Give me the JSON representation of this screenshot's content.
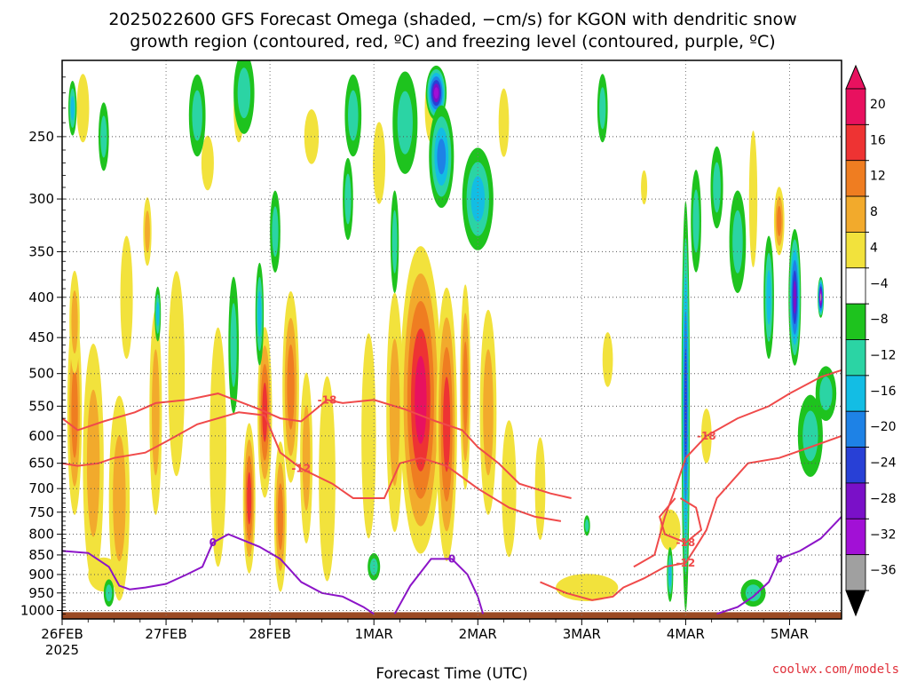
{
  "chart_data": {
    "type": "heatmap",
    "title_line1": "2025022600 GFS Forecast Omega (shaded, −cm/s) for KGON with dendritic snow",
    "title_line2": "growth region (contoured, red, ºC) and freezing level (contoured, purple, ºC)",
    "xlabel": "Forecast Time (UTC)",
    "x_axis": {
      "ticks": [
        "26FEB",
        "27FEB",
        "28FEB",
        "1MAR",
        "2MAR",
        "3MAR",
        "4MAR",
        "5MAR"
      ],
      "tick_times": [
        0,
        1,
        2,
        3,
        4,
        5,
        6,
        7
      ],
      "year_label": "2025",
      "range": [
        0,
        7.5
      ]
    },
    "y_axis": {
      "ticks": [
        250,
        300,
        350,
        400,
        450,
        500,
        550,
        600,
        650,
        700,
        750,
        800,
        850,
        900,
        950,
        1000
      ],
      "range": [
        200,
        1025
      ],
      "scale": "log-pressure, inverted"
    },
    "grid": true,
    "colorbar": {
      "labels": [
        "20",
        "16",
        "12",
        "8",
        "4",
        "−4",
        "−8",
        "−12",
        "−16",
        "−20",
        "−24",
        "−28",
        "−32",
        "−36"
      ],
      "colors": [
        "#e8115f",
        "#ee3333",
        "#ef7d21",
        "#f2aa2c",
        "#f2e23c",
        "#ffffff",
        "#1ec31e",
        "#2bd4a4",
        "#13bde4",
        "#1e82e6",
        "#2840d6",
        "#7a10c8",
        "#a210d6",
        "#a0a0a0",
        "#000000"
      ],
      "arrow_top_color": "#e8115f",
      "arrow_bottom_color": "#000000"
    },
    "contour_labels": {
      "snow_growth": [
        "-12",
        "-18"
      ],
      "freezing": [
        "0"
      ]
    },
    "ground_color": "#9b4a23",
    "snow_growth_color": "#f04a4a",
    "freezing_color": "#8c14c8",
    "omega_fields": [
      {
        "t": 0.12,
        "p": 560,
        "dt": 0.07,
        "dlogp": 0.3,
        "v": 14
      },
      {
        "t": 0.12,
        "p": 430,
        "dt": 0.05,
        "dlogp": 0.15,
        "v": 8
      },
      {
        "t": 0.3,
        "p": 650,
        "dt": 0.1,
        "dlogp": 0.35,
        "v": 8
      },
      {
        "t": 0.55,
        "p": 720,
        "dt": 0.1,
        "dlogp": 0.3,
        "v": 10
      },
      {
        "t": 0.62,
        "p": 400,
        "dt": 0.06,
        "dlogp": 0.18,
        "v": 6
      },
      {
        "t": 0.82,
        "p": 330,
        "dt": 0.04,
        "dlogp": 0.1,
        "v": 10
      },
      {
        "t": 0.9,
        "p": 560,
        "dt": 0.06,
        "dlogp": 0.3,
        "v": 8
      },
      {
        "t": 0.92,
        "p": 420,
        "dt": 0.03,
        "dlogp": 0.08,
        "v": -14
      },
      {
        "t": 1.1,
        "p": 500,
        "dt": 0.08,
        "dlogp": 0.3,
        "v": 6
      },
      {
        "t": 1.5,
        "p": 620,
        "dt": 0.08,
        "dlogp": 0.35,
        "v": 6
      },
      {
        "t": 1.8,
        "p": 720,
        "dt": 0.06,
        "dlogp": 0.22,
        "v": 18
      },
      {
        "t": 1.95,
        "p": 560,
        "dt": 0.07,
        "dlogp": 0.25,
        "v": 16
      },
      {
        "t": 2.1,
        "p": 760,
        "dt": 0.06,
        "dlogp": 0.22,
        "v": 14
      },
      {
        "t": 2.2,
        "p": 520,
        "dt": 0.08,
        "dlogp": 0.28,
        "v": 12
      },
      {
        "t": 2.35,
        "p": 640,
        "dt": 0.06,
        "dlogp": 0.25,
        "v": 10
      },
      {
        "t": 2.55,
        "p": 680,
        "dt": 0.08,
        "dlogp": 0.3,
        "v": 6
      },
      {
        "t": 2.95,
        "p": 600,
        "dt": 0.07,
        "dlogp": 0.3,
        "v": 6
      },
      {
        "t": 3.2,
        "p": 560,
        "dt": 0.08,
        "dlogp": 0.35,
        "v": 8
      },
      {
        "t": 3.45,
        "p": 540,
        "dt": 0.2,
        "dlogp": 0.45,
        "v": 22
      },
      {
        "t": 3.7,
        "p": 580,
        "dt": 0.1,
        "dlogp": 0.4,
        "v": 16
      },
      {
        "t": 3.88,
        "p": 520,
        "dt": 0.05,
        "dlogp": 0.3,
        "v": 12
      },
      {
        "t": 4.1,
        "p": 560,
        "dt": 0.08,
        "dlogp": 0.3,
        "v": 8
      },
      {
        "t": 4.3,
        "p": 700,
        "dt": 0.07,
        "dlogp": 0.2,
        "v": 6
      },
      {
        "t": 4.6,
        "p": 700,
        "dt": 0.05,
        "dlogp": 0.15,
        "v": 5
      },
      {
        "t": 5.25,
        "p": 480,
        "dt": 0.05,
        "dlogp": 0.08,
        "v": 6
      },
      {
        "t": 5.05,
        "p": 935,
        "dt": 0.3,
        "dlogp": 0.04,
        "v": 6
      },
      {
        "t": 5.85,
        "p": 790,
        "dt": 0.1,
        "dlogp": 0.06,
        "v": 6
      },
      {
        "t": 6.9,
        "p": 320,
        "dt": 0.05,
        "dlogp": 0.1,
        "v": 12
      },
      {
        "t": 6.2,
        "p": 600,
        "dt": 0.05,
        "dlogp": 0.08,
        "v": 5
      },
      {
        "t": 5.6,
        "p": 290,
        "dt": 0.03,
        "dlogp": 0.05,
        "v": 5
      },
      {
        "t": 6.65,
        "p": 300,
        "dt": 0.04,
        "dlogp": 0.2,
        "v": 5
      },
      {
        "t": 0.4,
        "p": 900,
        "dt": 0.15,
        "dlogp": 0.05,
        "v": 5
      },
      {
        "t": 1.4,
        "p": 270,
        "dt": 0.06,
        "dlogp": 0.08,
        "v": 6
      },
      {
        "t": 1.7,
        "p": 230,
        "dt": 0.05,
        "dlogp": 0.1,
        "v": 5
      },
      {
        "t": 2.4,
        "p": 250,
        "dt": 0.07,
        "dlogp": 0.08,
        "v": 5
      },
      {
        "t": 3.05,
        "p": 270,
        "dt": 0.06,
        "dlogp": 0.12,
        "v": 5
      },
      {
        "t": 3.55,
        "p": 230,
        "dt": 0.06,
        "dlogp": 0.1,
        "v": 5
      },
      {
        "t": 4.25,
        "p": 240,
        "dt": 0.05,
        "dlogp": 0.1,
        "v": 5
      },
      {
        "t": 0.2,
        "p": 230,
        "dt": 0.06,
        "dlogp": 0.1,
        "v": 5
      },
      {
        "t": 1.3,
        "p": 235,
        "dt": 0.08,
        "dlogp": 0.12,
        "v": -9
      },
      {
        "t": 1.75,
        "p": 220,
        "dt": 0.1,
        "dlogp": 0.12,
        "v": -10
      },
      {
        "t": 2.8,
        "p": 235,
        "dt": 0.08,
        "dlogp": 0.12,
        "v": -10
      },
      {
        "t": 3.3,
        "p": 240,
        "dt": 0.12,
        "dlogp": 0.15,
        "v": -9
      },
      {
        "t": 3.6,
        "p": 220,
        "dt": 0.1,
        "dlogp": 0.08,
        "v": -30
      },
      {
        "t": 3.65,
        "p": 265,
        "dt": 0.12,
        "dlogp": 0.15,
        "v": -18
      },
      {
        "t": 4.0,
        "p": 300,
        "dt": 0.15,
        "dlogp": 0.15,
        "v": -14
      },
      {
        "t": 0.1,
        "p": 230,
        "dt": 0.04,
        "dlogp": 0.08,
        "v": -14
      },
      {
        "t": 0.4,
        "p": 250,
        "dt": 0.05,
        "dlogp": 0.1,
        "v": -9
      },
      {
        "t": 1.65,
        "p": 460,
        "dt": 0.05,
        "dlogp": 0.2,
        "v": -9
      },
      {
        "t": 1.9,
        "p": 420,
        "dt": 0.04,
        "dlogp": 0.15,
        "v": -14
      },
      {
        "t": 2.05,
        "p": 330,
        "dt": 0.05,
        "dlogp": 0.12,
        "v": -9
      },
      {
        "t": 2.75,
        "p": 300,
        "dt": 0.05,
        "dlogp": 0.12,
        "v": -9
      },
      {
        "t": 3.2,
        "p": 340,
        "dt": 0.04,
        "dlogp": 0.15,
        "v": -9
      },
      {
        "t": 5.2,
        "p": 230,
        "dt": 0.05,
        "dlogp": 0.1,
        "v": -8
      },
      {
        "t": 6.0,
        "p": 550,
        "dt": 0.04,
        "dlogp": 0.6,
        "v": -20
      },
      {
        "t": 6.1,
        "p": 320,
        "dt": 0.05,
        "dlogp": 0.15,
        "v": -8
      },
      {
        "t": 6.3,
        "p": 290,
        "dt": 0.06,
        "dlogp": 0.12,
        "v": -8
      },
      {
        "t": 6.5,
        "p": 340,
        "dt": 0.08,
        "dlogp": 0.15,
        "v": -8
      },
      {
        "t": 6.8,
        "p": 400,
        "dt": 0.05,
        "dlogp": 0.18,
        "v": -12
      },
      {
        "t": 7.05,
        "p": 400,
        "dt": 0.06,
        "dlogp": 0.2,
        "v": -24
      },
      {
        "t": 7.2,
        "p": 600,
        "dt": 0.12,
        "dlogp": 0.12,
        "v": -9
      },
      {
        "t": 7.35,
        "p": 530,
        "dt": 0.1,
        "dlogp": 0.08,
        "v": -8
      },
      {
        "t": 3.0,
        "p": 880,
        "dt": 0.06,
        "dlogp": 0.04,
        "v": -9
      },
      {
        "t": 0.45,
        "p": 950,
        "dt": 0.05,
        "dlogp": 0.04,
        "v": -9
      },
      {
        "t": 5.85,
        "p": 900,
        "dt": 0.03,
        "dlogp": 0.08,
        "v": -14
      },
      {
        "t": 6.65,
        "p": 950,
        "dt": 0.12,
        "dlogp": 0.04,
        "v": -9
      },
      {
        "t": 5.05,
        "p": 780,
        "dt": 0.03,
        "dlogp": 0.03,
        "v": -9
      },
      {
        "t": 7.3,
        "p": 400,
        "dt": 0.03,
        "dlogp": 0.06,
        "v": -33
      }
    ],
    "snow_growth_contours": [
      {
        "label": "-12",
        "points": [
          [
            0,
            650
          ],
          [
            0.15,
            655
          ],
          [
            0.35,
            650
          ],
          [
            0.5,
            640
          ],
          [
            0.8,
            630
          ],
          [
            1.0,
            610
          ],
          [
            1.3,
            580
          ],
          [
            1.7,
            560
          ],
          [
            1.95,
            565
          ],
          [
            2.1,
            630
          ],
          [
            2.3,
            660
          ],
          [
            2.6,
            690
          ],
          [
            2.8,
            720
          ],
          [
            3.1,
            720
          ],
          [
            3.25,
            650
          ],
          [
            3.45,
            640
          ],
          [
            3.7,
            655
          ],
          [
            4.0,
            700
          ],
          [
            4.3,
            740
          ],
          [
            4.55,
            760
          ],
          [
            4.8,
            770
          ]
        ]
      },
      {
        "label": "-18",
        "points": [
          [
            0,
            570
          ],
          [
            0.15,
            590
          ],
          [
            0.4,
            575
          ],
          [
            0.7,
            560
          ],
          [
            0.9,
            545
          ],
          [
            1.2,
            540
          ],
          [
            1.5,
            530
          ],
          [
            1.9,
            555
          ],
          [
            2.1,
            570
          ],
          [
            2.3,
            575
          ],
          [
            2.55,
            540
          ],
          [
            2.7,
            545
          ],
          [
            3.0,
            540
          ],
          [
            3.3,
            555
          ],
          [
            3.6,
            575
          ],
          [
            3.85,
            590
          ],
          [
            4.0,
            620
          ],
          [
            4.2,
            650
          ],
          [
            4.4,
            690
          ],
          [
            4.7,
            710
          ],
          [
            4.9,
            720
          ]
        ]
      },
      {
        "label": "-12",
        "points": [
          [
            4.6,
            920
          ],
          [
            4.85,
            950
          ],
          [
            5.1,
            970
          ],
          [
            5.3,
            960
          ],
          [
            5.4,
            935
          ],
          [
            5.6,
            910
          ],
          [
            5.8,
            880
          ],
          [
            6.0,
            870
          ],
          [
            6.1,
            830
          ],
          [
            6.2,
            790
          ],
          [
            6.3,
            720
          ],
          [
            6.6,
            650
          ],
          [
            6.9,
            640
          ],
          [
            7.2,
            620
          ],
          [
            7.5,
            600
          ]
        ]
      },
      {
        "label": "-18",
        "points": [
          [
            5.5,
            880
          ],
          [
            5.7,
            850
          ],
          [
            5.8,
            760
          ],
          [
            5.9,
            700
          ],
          [
            6.0,
            640
          ],
          [
            6.2,
            600
          ],
          [
            6.5,
            570
          ],
          [
            6.8,
            550
          ],
          [
            7.0,
            530
          ],
          [
            7.3,
            505
          ],
          [
            7.5,
            495
          ]
        ]
      },
      {
        "label": "-18",
        "points": [
          [
            5.9,
            720
          ],
          [
            5.75,
            760
          ],
          [
            5.8,
            800
          ],
          [
            6.0,
            820
          ],
          [
            6.15,
            790
          ],
          [
            6.1,
            740
          ],
          [
            5.95,
            720
          ]
        ]
      }
    ],
    "freezing_contours": [
      {
        "label": "0",
        "points": [
          [
            0,
            840
          ],
          [
            0.25,
            845
          ],
          [
            0.45,
            880
          ],
          [
            0.55,
            930
          ],
          [
            0.65,
            940
          ],
          [
            0.8,
            935
          ],
          [
            1.0,
            925
          ],
          [
            1.2,
            900
          ],
          [
            1.35,
            880
          ],
          [
            1.45,
            820
          ],
          [
            1.6,
            800
          ],
          [
            1.9,
            830
          ],
          [
            2.1,
            860
          ],
          [
            2.3,
            920
          ],
          [
            2.5,
            950
          ],
          [
            2.7,
            960
          ],
          [
            2.9,
            990
          ],
          [
            3.0,
            1010
          ]
        ]
      },
      {
        "label": "0",
        "points": [
          [
            3.2,
            1010
          ],
          [
            3.35,
            930
          ],
          [
            3.55,
            860
          ],
          [
            3.75,
            860
          ],
          [
            3.9,
            900
          ],
          [
            4.0,
            960
          ],
          [
            4.05,
            1010
          ]
        ]
      },
      {
        "label": "0",
        "points": [
          [
            6.3,
            1010
          ],
          [
            6.5,
            990
          ],
          [
            6.65,
            960
          ],
          [
            6.8,
            920
          ],
          [
            6.9,
            860
          ],
          [
            7.1,
            840
          ],
          [
            7.3,
            810
          ],
          [
            7.5,
            760
          ]
        ]
      }
    ],
    "credit": "coolwx.com/models"
  }
}
